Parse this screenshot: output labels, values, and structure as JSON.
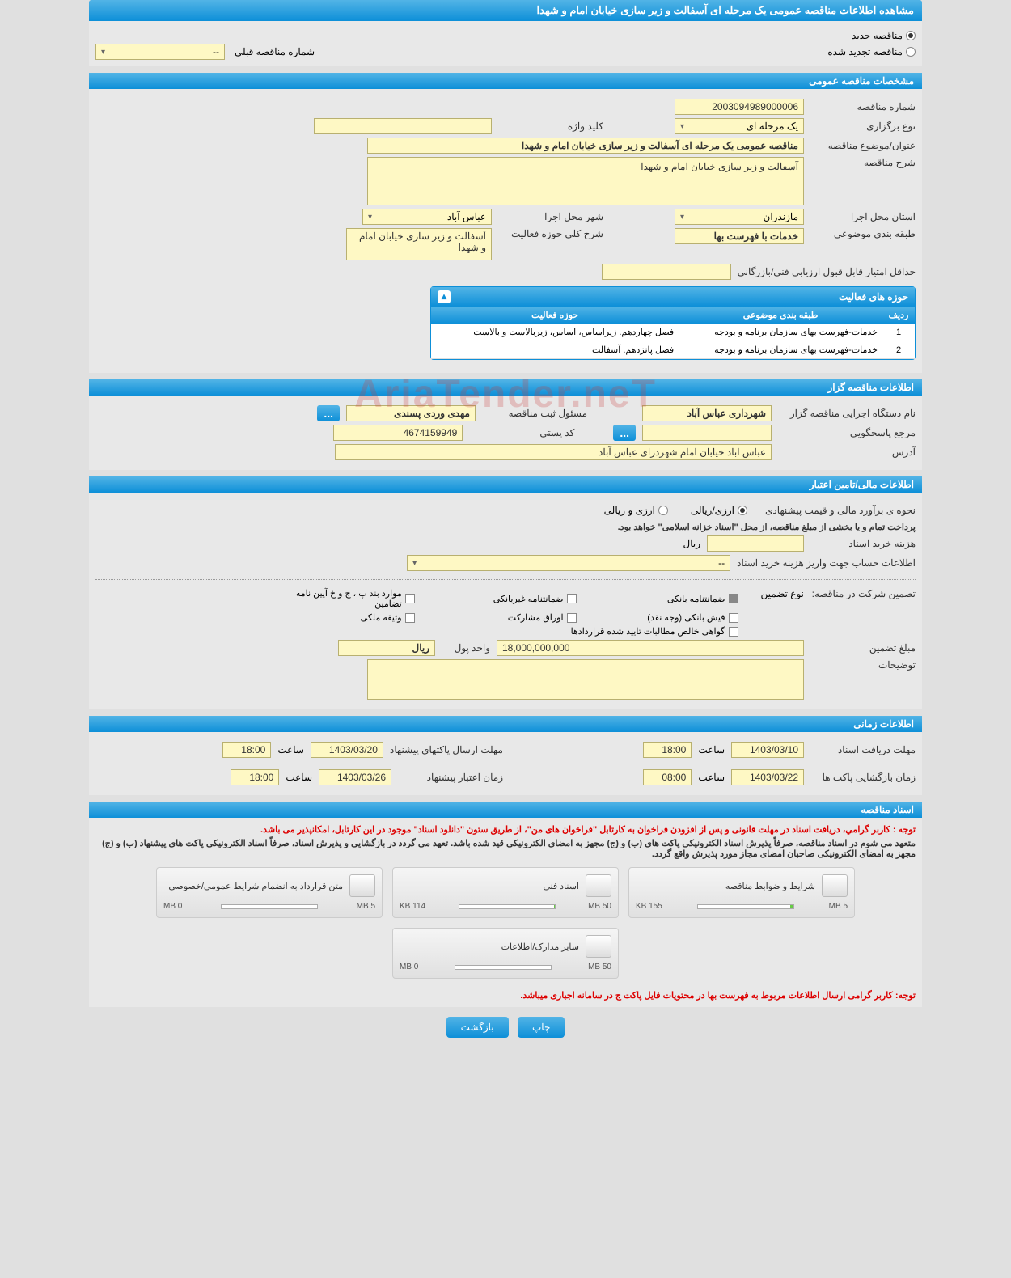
{
  "header": {
    "title": "مشاهده اطلاعات مناقصه عمومی یک مرحله ای آسفالت و زیر سازی خیابان امام و شهدا"
  },
  "top_radios": {
    "new": "مناقصه جدید",
    "renew": "مناقصه تجدید شده",
    "prev_label": "شماره مناقصه قبلی",
    "prev_value": "--"
  },
  "sec_general": {
    "title": "مشخصات مناقصه عمومی",
    "labels": {
      "number": "شماره مناقصه",
      "type": "نوع برگزاری",
      "keyword": "کلید واژه",
      "subject": "عنوان/موضوع مناقصه",
      "desc": "شرح مناقصه",
      "province": "استان محل اجرا",
      "city": "شهر محل اجرا",
      "topic_class": "طبقه بندی موضوعی",
      "activity_scope": "شرح کلی حوزه فعالیت",
      "min_score": "حداقل امتیاز قابل قبول ارزیابی فنی/بازرگانی"
    },
    "values": {
      "number": "2003094989000006",
      "type": "یک مرحله ای",
      "keyword": "",
      "subject": "مناقصه عمومی یک مرحله ای آسفالت و زیر سازی  خیابان امام و شهدا",
      "desc": "آسفالت و زیر سازی  خیابان امام و شهدا",
      "province": "مازندران",
      "city": "عباس آباد",
      "topic_class": "خدمات با فهرست بها",
      "activity_scope": "آسفالت و زیر سازی  خیابان امام و شهدا",
      "min_score": ""
    }
  },
  "activity_table": {
    "title": "حوزه های فعالیت",
    "columns": [
      "ردیف",
      "طبقه بندی موضوعی",
      "حوزه فعالیت"
    ],
    "rows": [
      [
        "1",
        "خدمات-فهرست بهای سازمان برنامه و بودجه",
        "فصل چهاردهم. زیراساس، اساس، زیربالاست  و بالاست"
      ],
      [
        "2",
        "خدمات-فهرست بهای سازمان برنامه و بودجه",
        "فصل پانزدهم. آسفالت"
      ]
    ]
  },
  "sec_tenderer": {
    "title": "اطلاعات مناقصه گزار",
    "labels": {
      "org": "نام دستگاه اجرایی مناقصه گزار",
      "responsible": "مسئول ثبت مناقصه",
      "contact": "مرجع پاسخگویی",
      "postal": "کد پستی",
      "address": "آدرس"
    },
    "values": {
      "org": "شهرداری عباس آباد",
      "responsible": "مهدی وردی پسندی",
      "contact": "",
      "postal": "4674159949",
      "address": "عباس اباد خیابان امام شهردرای عباس آباد"
    }
  },
  "sec_financial": {
    "title": "اطلاعات مالی/تامین اعتبار",
    "estimate_label": "نحوه ی برآورد مالی و قیمت پیشنهادی",
    "opts": {
      "rial": "ارزی/ریالی",
      "both": "ارزی و ریالی"
    },
    "treasury_note": "پرداخت تمام و یا بخشی از مبلغ مناقصه، از محل \"اسناد خزانه اسلامی\" خواهد بود.",
    "labels": {
      "doc_cost": "هزینه خرید اسناد",
      "rial": "ریال",
      "acct_info": "اطلاعات حساب جهت واریز هزینه خرید اسناد"
    },
    "values": {
      "doc_cost": "",
      "acct_info": "--"
    },
    "guarantee": {
      "label": "تضمین شرکت در مناقصه:",
      "type_label": "نوع تضمین",
      "opts": {
        "bank": "ضمانتنامه بانکی",
        "nonbank": "ضمانتنامه غیربانکی",
        "clauses": "موارد بند پ ، ج و خ آیین نامه تضامین",
        "cash": "فیش بانکی (وجه نقد)",
        "bonds": "اوراق مشارکت",
        "property": "وثیقه ملکی",
        "net": "گواهی خالص مطالبات تایید شده قراردادها"
      },
      "amount_label": "مبلغ تضمین",
      "amount": "18,000,000,000",
      "unit_label": "واحد پول",
      "unit": "ریال",
      "notes_label": "توضیحات"
    }
  },
  "sec_time": {
    "title": "اطلاعات زمانی",
    "labels": {
      "receive": "مهلت دریافت اسناد",
      "send": "مهلت ارسال پاکتهای پیشنهاد",
      "open": "زمان بازگشایی پاکت ها",
      "validity": "زمان اعتبار پیشنهاد",
      "time": "ساعت"
    },
    "values": {
      "receive_date": "1403/03/10",
      "receive_time": "18:00",
      "send_date": "1403/03/20",
      "send_time": "18:00",
      "open_date": "1403/03/22",
      "open_time": "08:00",
      "validity_date": "1403/03/26",
      "validity_time": "18:00"
    }
  },
  "sec_docs": {
    "title": "اسناد مناقصه",
    "note1": "توجه : كاربر گرامي، دريافت اسناد در مهلت قانونی و پس از افزودن فراخوان به کارتابل \"فراخوان های من\"، از طریق ستون \"دانلود اسناد\" موجود در این کارتابل، امکانپذیر می باشد.",
    "note2": "متعهد می شوم در اسناد مناقصه، صرفاً پذیرش اسناد الکترونیکی پاکت های (ب) و (ج) مجهز به امضای الکترونیکی قید شده باشد. تعهد می گردد در بازگشایی و پذیرش اسناد، صرفاً اسناد الکترونیکی پاکت های پیشنهاد (ب) و (ج) مجهز به امضای الکترونیکی صاحبان امضای مجاز مورد پذیرش واقع گردد.",
    "note3": "توجه: کاربر گرامی ارسال اطلاعات مربوط به فهرست بها در محتویات فایل پاکت ج در سامانه اجباری میباشد.",
    "files": [
      {
        "title": "شرایط و ضوابط مناقصه",
        "used": "155 KB",
        "total": "5 MB",
        "pct": 3
      },
      {
        "title": "اسناد فنی",
        "used": "114 KB",
        "total": "50 MB",
        "pct": 0.5
      },
      {
        "title": "متن قرارداد به انضمام شرایط عمومی/خصوصی",
        "used": "0 MB",
        "total": "5 MB",
        "pct": 0
      },
      {
        "title": "سایر مدارک/اطلاعات",
        "used": "0 MB",
        "total": "50 MB",
        "pct": 0
      }
    ]
  },
  "buttons": {
    "print": "چاپ",
    "back": "بازگشت"
  },
  "watermark": "AriaTender.neT",
  "colors": {
    "header_grad_top": "#52b4e6",
    "header_grad_bot": "#0d8fd8",
    "field_bg": "#fef8c4",
    "page_bg": "#e0e0e0"
  }
}
